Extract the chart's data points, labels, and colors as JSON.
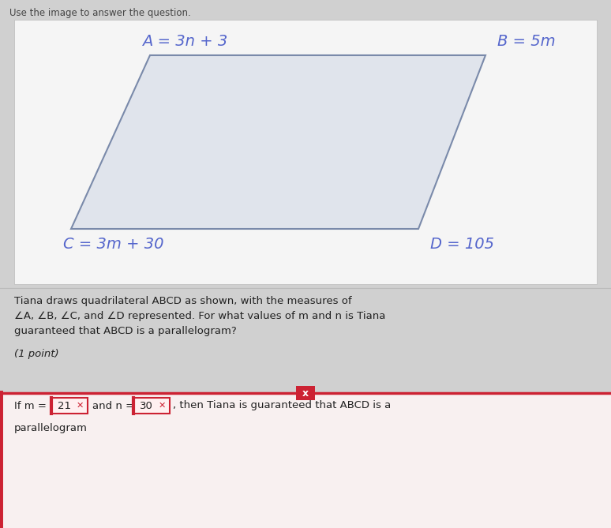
{
  "outer_bg": "#d0d0d0",
  "inner_bg": "#e8e8e8",
  "white_panel": "#f5f5f5",
  "para_fill": "#e0e4ec",
  "para_edge": "#7a8aaa",
  "title_text": "Use the image to answer the question.",
  "title_fontsize": 8.5,
  "title_color": "#444444",
  "label_A": "A = 3n + 3",
  "label_B": "B = 5m",
  "label_C": "C = 3m + 30",
  "label_D": "D = 105",
  "label_color": "#5566cc",
  "label_fontsize": 14,
  "body_line1": "Tiana draws quadrilateral ABCD as shown, with the measures of",
  "body_line2": "∠A, ∠B, ∠C, and ∠D represented. For what values of m and n is Tiana",
  "body_line3": "guaranteed that ABCD is a parallelogram?",
  "body_line4": "(1 point)",
  "body_fontsize": 9.5,
  "body_color": "#222222",
  "red_color": "#cc2233",
  "answer_line": "If m =",
  "m_val": "21",
  "n_val": "30",
  "answer_mid": " and n =",
  "answer_post": ", then Tiana is guaranteed that ABCD is a",
  "answer_fontsize": 9.5,
  "bottom_word": "parallelogram",
  "x_label": "x"
}
